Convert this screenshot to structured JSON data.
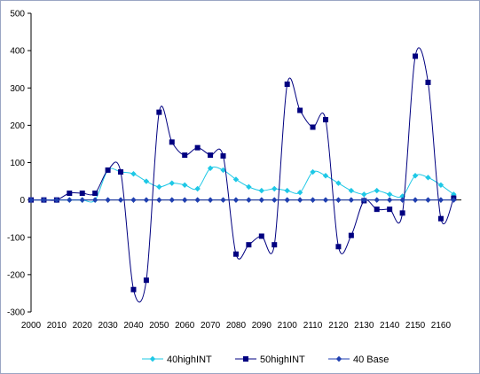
{
  "chart_data": {
    "type": "line",
    "title": "",
    "xlabel": "",
    "ylabel": "",
    "x": [
      2000,
      2005,
      2010,
      2015,
      2020,
      2025,
      2030,
      2035,
      2040,
      2045,
      2050,
      2055,
      2060,
      2065,
      2070,
      2075,
      2080,
      2085,
      2090,
      2095,
      2100,
      2105,
      2110,
      2115,
      2120,
      2125,
      2130,
      2135,
      2140,
      2145,
      2150,
      2155,
      2160,
      2165
    ],
    "xlim": [
      2000,
      2168
    ],
    "ylim": [
      -300,
      500
    ],
    "x_ticks": [
      "2000",
      "2010",
      "2020",
      "2030",
      "2040",
      "2050",
      "2060",
      "2070",
      "2080",
      "2090",
      "2100",
      "2110",
      "2120",
      "2130",
      "2140",
      "2150",
      "2160"
    ],
    "y_ticks": [
      "-300",
      "-200",
      "-100",
      "0",
      "100",
      "200",
      "300",
      "400",
      "500"
    ],
    "grid": false,
    "legend_position": "bottom",
    "series": [
      {
        "name": "40highINT",
        "color": "#1ec8e6",
        "marker": "diamond",
        "values": [
          0,
          0,
          0,
          0,
          0,
          0,
          80,
          75,
          70,
          50,
          35,
          45,
          40,
          30,
          85,
          80,
          55,
          35,
          25,
          30,
          25,
          20,
          75,
          65,
          45,
          25,
          15,
          25,
          15,
          10,
          65,
          60,
          40,
          15
        ]
      },
      {
        "name": "50highINT",
        "color": "#000080",
        "marker": "square",
        "values": [
          0,
          0,
          0,
          18,
          18,
          18,
          80,
          75,
          -240,
          -215,
          235,
          155,
          120,
          140,
          120,
          118,
          -145,
          -120,
          -97,
          -120,
          310,
          240,
          195,
          215,
          -125,
          -95,
          -2,
          -25,
          -25,
          -35,
          385,
          315,
          -50,
          5
        ]
      },
      {
        "name": "40 Base",
        "color": "#1f3fb0",
        "marker": "diamond",
        "values": [
          0,
          0,
          0,
          0,
          0,
          0,
          0,
          0,
          0,
          0,
          0,
          0,
          0,
          0,
          0,
          0,
          0,
          0,
          0,
          0,
          0,
          0,
          0,
          0,
          0,
          0,
          0,
          0,
          0,
          0,
          0,
          0,
          0,
          0
        ]
      }
    ]
  }
}
